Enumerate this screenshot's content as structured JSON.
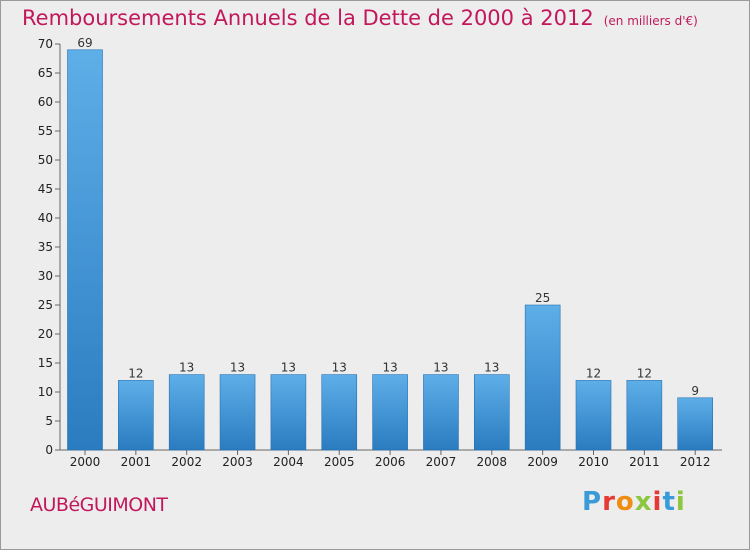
{
  "header": {
    "title": "Remboursements Annuels de la Dette de 2000 à 2012",
    "unit": "(en milliers d'€)"
  },
  "footer": {
    "place": "AUBéGUIMONT",
    "brand": "Proxiti",
    "brand_colors": [
      "#3a9bd9",
      "#e53935",
      "#ef8d10",
      "#8dc63f",
      "#e53935",
      "#3a9bd9",
      "#8dc63f"
    ]
  },
  "colors": {
    "bar_top": "#5eaee8",
    "bar_bottom": "#2a7cc0",
    "title": "#c2185b",
    "background": "#ededed"
  },
  "chart_data": {
    "type": "bar",
    "title": "Remboursements Annuels de la Dette de 2000 à 2012",
    "xlabel": "",
    "ylabel": "",
    "categories": [
      "2000",
      "2001",
      "2002",
      "2003",
      "2004",
      "2005",
      "2006",
      "2007",
      "2008",
      "2009",
      "2010",
      "2011",
      "2012"
    ],
    "values": [
      69,
      12,
      13,
      13,
      13,
      13,
      13,
      13,
      13,
      25,
      12,
      12,
      9
    ],
    "ylim": [
      0,
      70
    ],
    "yticks": [
      0,
      5,
      10,
      15,
      20,
      25,
      30,
      35,
      40,
      45,
      50,
      55,
      60,
      65,
      70
    ],
    "grid": false,
    "data_labels": true
  }
}
